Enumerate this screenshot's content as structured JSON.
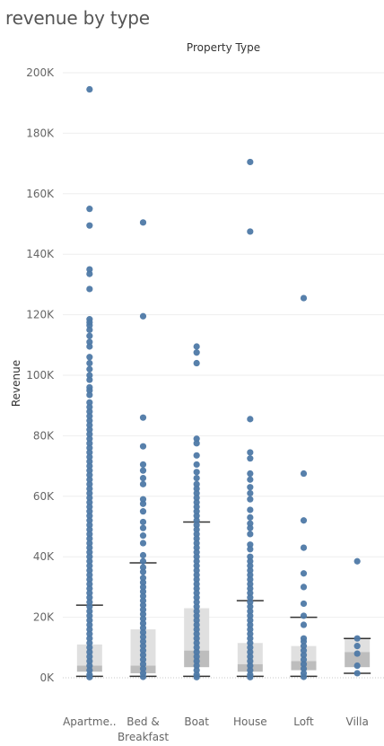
{
  "title": "revenue by type",
  "chart_data": {
    "type": "boxplot",
    "title": "revenue by type",
    "column_header": "Property Type",
    "ylabel": "Revenue",
    "ylim": [
      0,
      200000
    ],
    "yticks": [
      {
        "value": 0,
        "label": "0K"
      },
      {
        "value": 20000,
        "label": "20K"
      },
      {
        "value": 40000,
        "label": "40K"
      },
      {
        "value": 60000,
        "label": "60K"
      },
      {
        "value": 80000,
        "label": "80K"
      },
      {
        "value": 100000,
        "label": "100K"
      },
      {
        "value": 120000,
        "label": "120K"
      },
      {
        "value": 140000,
        "label": "140K"
      },
      {
        "value": 160000,
        "label": "160K"
      },
      {
        "value": 180000,
        "label": "180K"
      },
      {
        "value": 200000,
        "label": "200K"
      }
    ],
    "grid": true,
    "colors": {
      "points": "#4e79a7",
      "box_upper": "#e0e0e0",
      "box_lower": "#bdbdbd",
      "whisker": "#333333",
      "grid": "#eeeeee"
    },
    "categories": [
      {
        "label": "Apartme..",
        "box": {
          "lower_whisker": 500,
          "q1": 2000,
          "median": 4000,
          "q3": 11000,
          "upper_whisker": 24000
        },
        "points": [
          194500,
          155000,
          149500,
          135000,
          133500,
          128500,
          118500,
          117500,
          116500,
          115000,
          113000,
          111000,
          109500,
          106000,
          104000,
          102000,
          100000,
          98500,
          96000,
          95000,
          93500,
          91000,
          89500,
          88000,
          86500,
          85000,
          83500,
          82000,
          80500,
          79000,
          77500,
          76000,
          74500,
          73000,
          71500,
          70000,
          68500,
          67000,
          65500,
          64000,
          62500,
          61000,
          59500,
          58000,
          56500,
          55000,
          53500,
          52000,
          50500,
          49000,
          47500,
          46000,
          44500,
          43000,
          41500,
          40000,
          38500,
          37000,
          35500,
          34000,
          32500,
          31000,
          29500,
          28000,
          26500,
          25000,
          23500,
          22000,
          20500,
          19000,
          17500,
          16000,
          14500,
          13000,
          11500,
          10000,
          8500,
          7000,
          5500,
          4000,
          2500,
          1000,
          200
        ]
      },
      {
        "label": "Bed & Breakfast",
        "box": {
          "lower_whisker": 500,
          "q1": 1500,
          "median": 4000,
          "q3": 16000,
          "upper_whisker": 38000
        },
        "points": [
          150500,
          119500,
          86000,
          76500,
          70500,
          68500,
          66000,
          64000,
          59000,
          57500,
          55000,
          51500,
          49500,
          47000,
          44500,
          40500,
          38500,
          36500,
          35000,
          33000,
          31500,
          30000,
          28500,
          27000,
          25500,
          24000,
          22500,
          21000,
          19500,
          18000,
          16500,
          15000,
          13500,
          12000,
          10500,
          9000,
          7500,
          6000,
          4500,
          3000,
          1500,
          300
        ]
      },
      {
        "label": "Boat",
        "box": {
          "lower_whisker": 500,
          "q1": 3500,
          "median": 9000,
          "q3": 23000,
          "upper_whisker": 51500
        },
        "points": [
          109500,
          107500,
          104000,
          79000,
          77500,
          73500,
          70500,
          68000,
          66000,
          64000,
          62500,
          61000,
          59500,
          58000,
          56500,
          55000,
          53500,
          52000,
          50500,
          49000,
          47500,
          46000,
          44500,
          43000,
          41500,
          40000,
          38500,
          37000,
          35500,
          34000,
          32500,
          31000,
          29500,
          28000,
          26500,
          25000,
          23500,
          22000,
          20500,
          19000,
          17500,
          16000,
          14500,
          13000,
          11500,
          10000,
          8500,
          7000,
          5500,
          4000,
          2500,
          1000,
          200
        ]
      },
      {
        "label": "House",
        "box": {
          "lower_whisker": 500,
          "q1": 2000,
          "median": 4500,
          "q3": 11500,
          "upper_whisker": 25500
        },
        "points": [
          170500,
          147500,
          85500,
          74500,
          72500,
          67500,
          65500,
          63000,
          61000,
          59000,
          55500,
          53000,
          51000,
          49500,
          47500,
          44000,
          42500,
          40000,
          38500,
          37000,
          35500,
          34000,
          32500,
          31000,
          29500,
          28000,
          26500,
          25000,
          23500,
          22000,
          20500,
          19000,
          17500,
          16000,
          14500,
          13000,
          11500,
          10000,
          8500,
          7000,
          5500,
          4000,
          2500,
          1000,
          200
        ]
      },
      {
        "label": "Loft",
        "box": {
          "lower_whisker": 500,
          "q1": 2500,
          "median": 5500,
          "q3": 10500,
          "upper_whisker": 20000
        },
        "points": [
          125500,
          67500,
          52000,
          43000,
          34500,
          30000,
          24500,
          20500,
          17500,
          13000,
          12000,
          10500,
          9000,
          7500,
          6000,
          4500,
          3000,
          1500,
          300
        ]
      },
      {
        "label": "Villa",
        "box": {
          "lower_whisker": 1500,
          "q1": 3500,
          "median": 8500,
          "q3": 13000,
          "upper_whisker": 13000
        },
        "points": [
          38500,
          13000,
          10500,
          8000,
          4000,
          1500
        ]
      }
    ]
  }
}
